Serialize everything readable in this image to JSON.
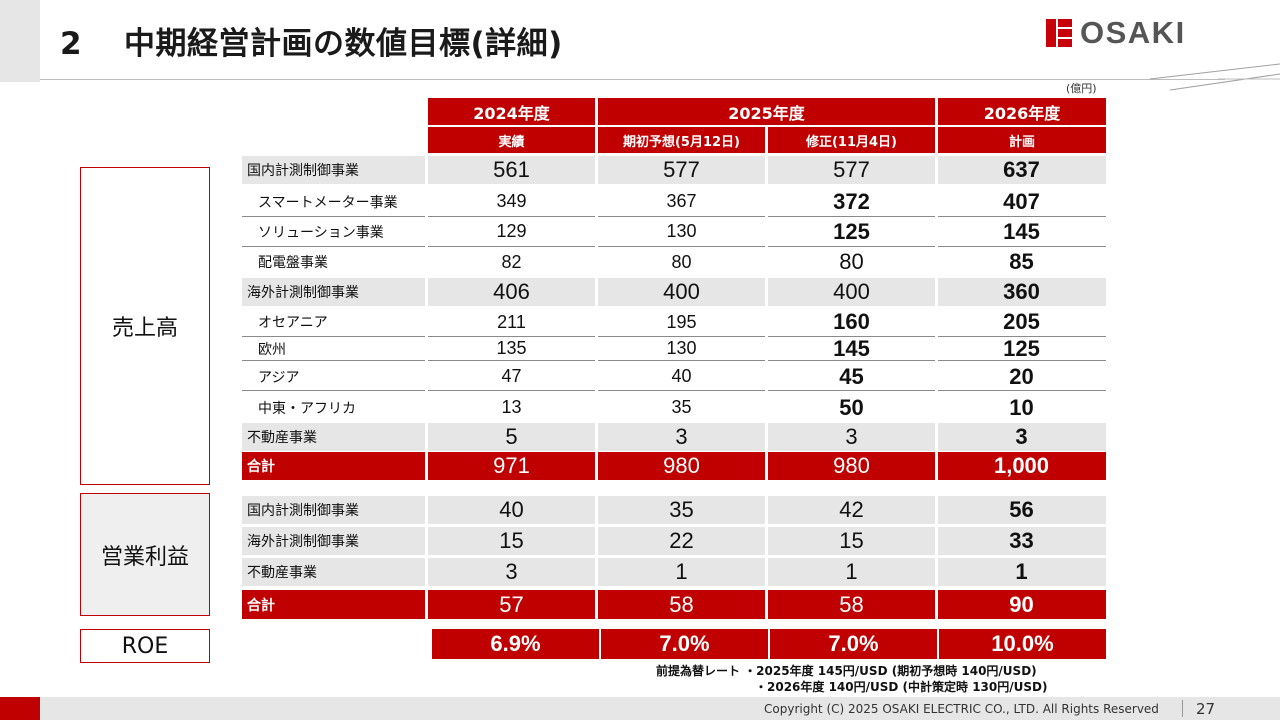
{
  "header": {
    "section_number": "2",
    "title": "中期経営計画の数値目標(詳細)",
    "logo_text": "OSAKI"
  },
  "unit_label": "(億円)",
  "columns": {
    "years": [
      "2024年度",
      "2025年度",
      "2026年度"
    ],
    "subheaders": [
      "実績",
      "期初予想(5月12日)",
      "修正(11月4日)",
      "計画"
    ]
  },
  "sales": {
    "category": "売上高",
    "rows": [
      {
        "label": "国内計測制御事業",
        "values": [
          "561",
          "577",
          "577",
          "637"
        ]
      },
      {
        "label": "スマートメーター事業",
        "values": [
          "349",
          "367",
          "372",
          "407"
        ]
      },
      {
        "label": "ソリューション事業",
        "values": [
          "129",
          "130",
          "125",
          "145"
        ]
      },
      {
        "label": "配電盤事業",
        "values": [
          "82",
          "80",
          "80",
          "85"
        ]
      },
      {
        "label": "海外計測制御事業",
        "values": [
          "406",
          "400",
          "400",
          "360"
        ]
      },
      {
        "label": "オセアニア",
        "values": [
          "211",
          "195",
          "160",
          "205"
        ]
      },
      {
        "label": "欧州",
        "values": [
          "135",
          "130",
          "145",
          "125"
        ]
      },
      {
        "label": "アジア",
        "values": [
          "47",
          "40",
          "45",
          "20"
        ]
      },
      {
        "label": "中東・アフリカ",
        "values": [
          "13",
          "35",
          "50",
          "10"
        ]
      },
      {
        "label": "不動産事業",
        "values": [
          "5",
          "3",
          "3",
          "3"
        ]
      },
      {
        "label": "合計",
        "values": [
          "971",
          "980",
          "980",
          "1,000"
        ]
      }
    ]
  },
  "operating_profit": {
    "category": "営業利益",
    "rows": [
      {
        "label": "国内計測制御事業",
        "values": [
          "40",
          "35",
          "42",
          "56"
        ]
      },
      {
        "label": "海外計測制御事業",
        "values": [
          "15",
          "22",
          "15",
          "33"
        ]
      },
      {
        "label": "不動産事業",
        "values": [
          "3",
          "1",
          "1",
          "1"
        ]
      },
      {
        "label": "合計",
        "values": [
          "57",
          "58",
          "58",
          "90"
        ]
      }
    ]
  },
  "roe": {
    "label": "ROE",
    "values": [
      "6.9%",
      "7.0%",
      "7.0%",
      "10.0%"
    ]
  },
  "notes": {
    "line1": "前提為替レート ・2025年度 145円/USD (期初予想時 140円/USD)",
    "line2": "・2026年度 140円/USD (中計策定時 130円/USD)"
  },
  "footer": {
    "copyright": "Copyright (C) 2025 OSAKI ELECTRIC CO., LTD. All Rights Reserved",
    "page_number": "27"
  },
  "colors": {
    "accent_red": "#c00000",
    "logo_red": "#c8000a",
    "row_gray": "#e6e6e6",
    "box_gray": "#efefef"
  }
}
